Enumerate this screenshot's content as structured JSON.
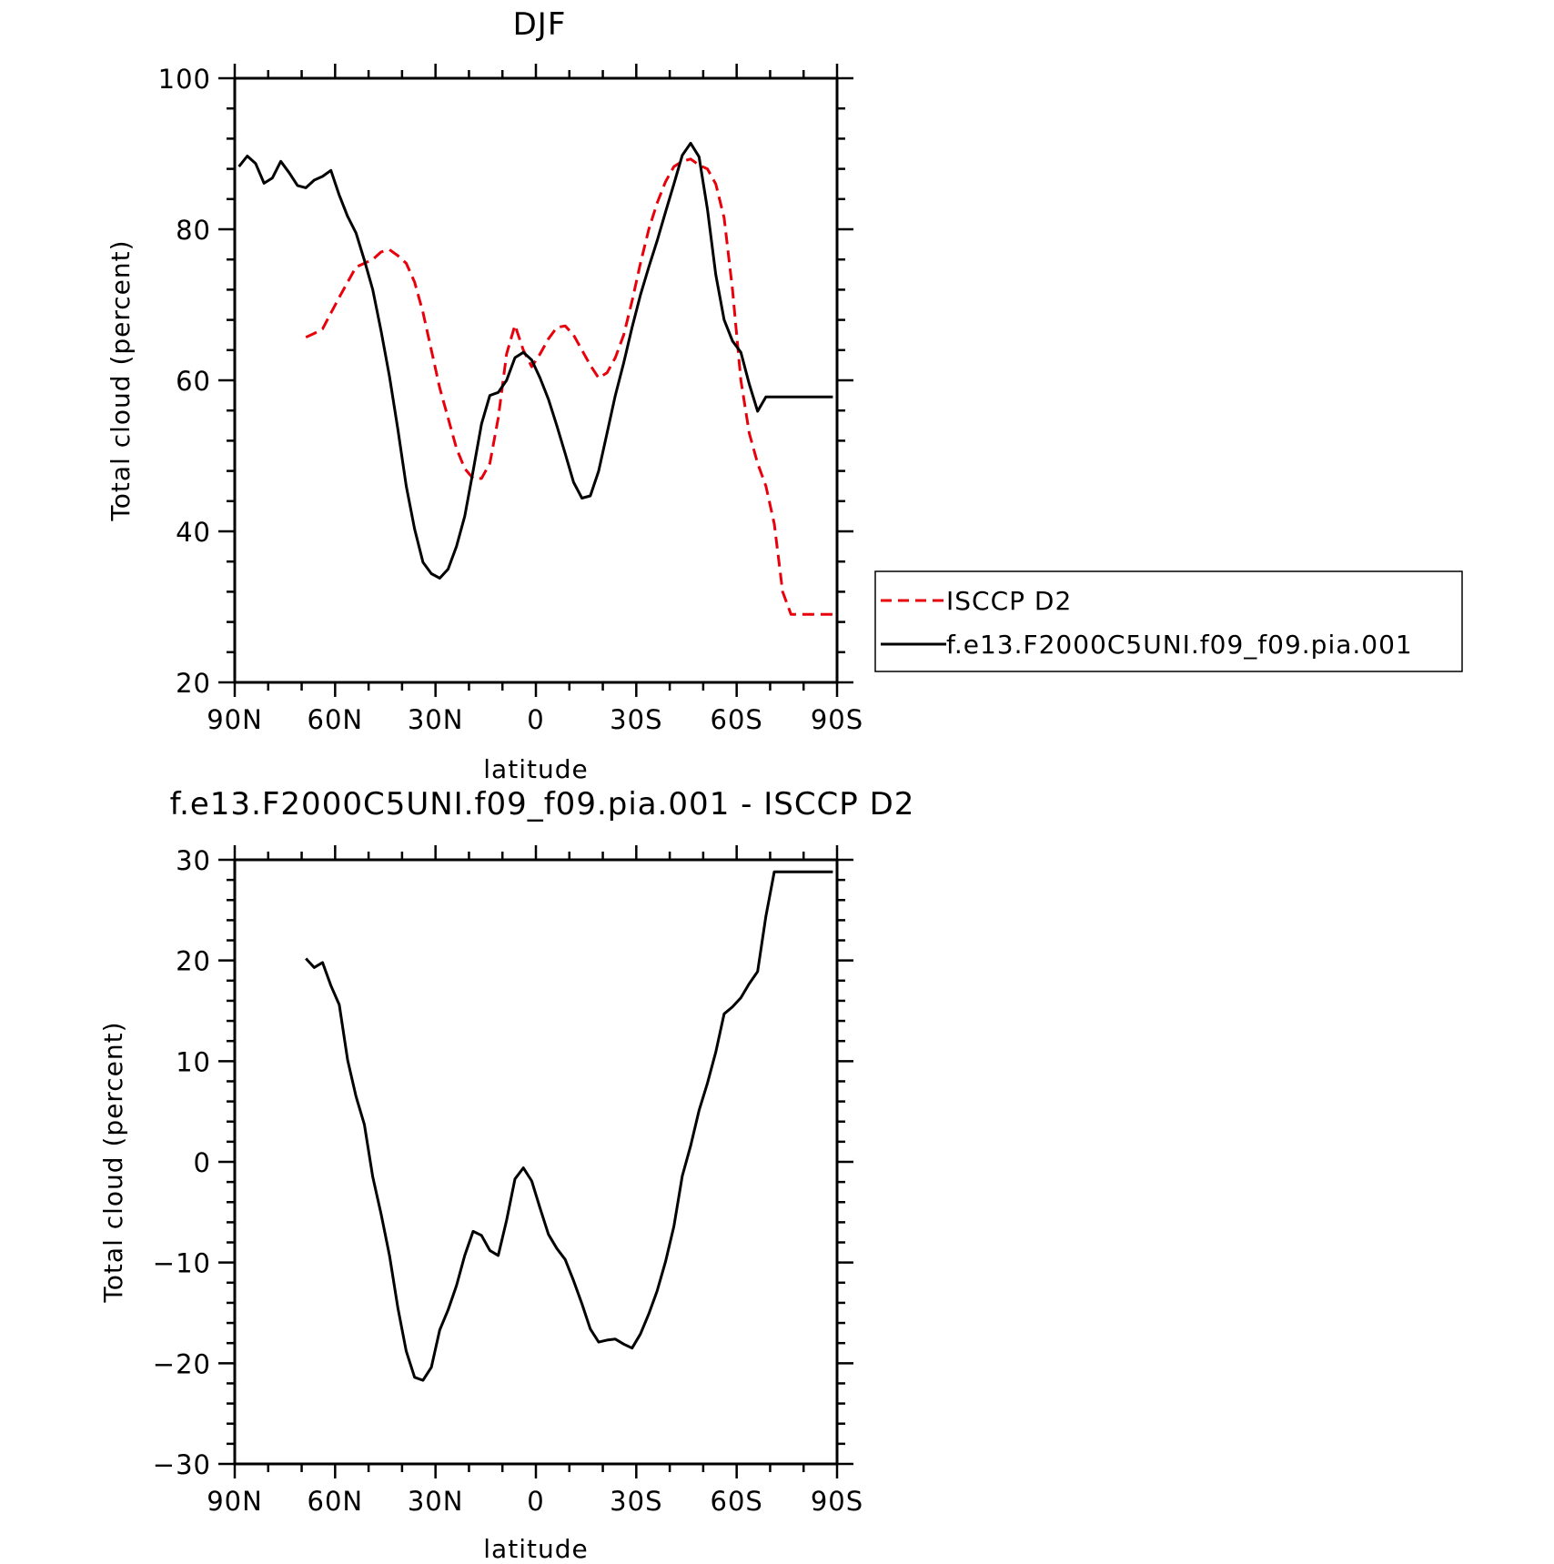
{
  "colors": {
    "obs": "#e8000b",
    "model": "#000000",
    "axis": "#000000"
  },
  "chart_data": [
    {
      "type": "line",
      "title": "DJF",
      "xlabel": "latitude",
      "ylabel": "Total cloud (percent)",
      "xlim": [
        90,
        -90
      ],
      "ylim": [
        20,
        100
      ],
      "xticks": [
        90,
        60,
        30,
        0,
        -30,
        -60,
        -90
      ],
      "xtick_labels": [
        "90N",
        "60N",
        "30N",
        "0",
        "30S",
        "60S",
        "90S"
      ],
      "yticks": [
        20,
        40,
        60,
        80,
        100
      ],
      "ytick_labels": [
        "20",
        "40",
        "60",
        "80",
        "100"
      ],
      "legend": "outside-right",
      "series": [
        {
          "name": "ISCCP D2",
          "style": "dashed",
          "color": "#e8000b",
          "x": [
            68.75,
            66.25,
            63.75,
            61.25,
            58.75,
            56.25,
            53.75,
            51.25,
            48.75,
            46.25,
            43.75,
            41.25,
            38.75,
            36.25,
            33.75,
            31.25,
            28.75,
            26.25,
            23.75,
            21.25,
            18.75,
            16.25,
            13.75,
            11.25,
            8.75,
            6.25,
            3.75,
            1.25,
            -1.25,
            -3.75,
            -6.25,
            -8.75,
            -11.25,
            -13.75,
            -16.25,
            -18.75,
            -21.25,
            -23.75,
            -26.25,
            -28.75,
            -31.25,
            -33.75,
            -36.25,
            -38.75,
            -41.25,
            -43.75,
            -46.25,
            -48.75,
            -51.25,
            -53.75,
            -56.25,
            -58.75,
            -61.25,
            -63.75,
            -66.25,
            -68.75,
            -71.25,
            -73.75,
            -76.25,
            -78.75,
            -81.25,
            -83.75,
            -86.25,
            -88.75
          ],
          "y": [
            65.7,
            66.2,
            66.8,
            68.9,
            71.0,
            73.0,
            75.0,
            75.5,
            76.0,
            77.0,
            77.3,
            76.5,
            75.5,
            73.0,
            69.0,
            64.0,
            59.0,
            55.0,
            51.0,
            48.3,
            47.0,
            47.0,
            49.0,
            55.0,
            63.5,
            67.3,
            64.0,
            61.8,
            63.5,
            65.5,
            67.0,
            67.2,
            66.0,
            64.0,
            62.0,
            60.3,
            61.0,
            63.0,
            66.0,
            70.5,
            75.5,
            80.0,
            83.5,
            86.3,
            88.3,
            89.0,
            89.3,
            88.5,
            88.0,
            86.0,
            81.5,
            72.0,
            60.0,
            53.0,
            49.0,
            46.0,
            41.0,
            32.0,
            29.0,
            29.0,
            29.0,
            29.0,
            29.0,
            29.0
          ]
        },
        {
          "name": "f.e13.F2000C5UNI.f09_f09.pia.001",
          "style": "solid",
          "color": "#000000",
          "x": [
            88.75,
            86.25,
            83.75,
            81.25,
            78.75,
            76.25,
            73.75,
            71.25,
            68.75,
            66.25,
            63.75,
            61.25,
            58.75,
            56.25,
            53.75,
            51.25,
            48.75,
            46.25,
            43.75,
            41.25,
            38.75,
            36.25,
            33.75,
            31.25,
            28.75,
            26.25,
            23.75,
            21.25,
            18.75,
            16.25,
            13.75,
            11.25,
            8.75,
            6.25,
            3.75,
            1.25,
            -1.25,
            -3.75,
            -6.25,
            -8.75,
            -11.25,
            -13.75,
            -16.25,
            -18.75,
            -21.25,
            -23.75,
            -26.25,
            -28.75,
            -31.25,
            -33.75,
            -36.25,
            -38.75,
            -41.25,
            -43.75,
            -46.25,
            -48.75,
            -51.25,
            -53.75,
            -56.25,
            -58.75,
            -61.25,
            -63.75,
            -66.25,
            -68.75,
            -71.25,
            -73.75,
            -76.25,
            -78.75,
            -81.25,
            -83.75,
            -86.25,
            -88.75
          ],
          "y": [
            88.3,
            89.7,
            88.7,
            86.1,
            86.8,
            89.0,
            87.5,
            85.8,
            85.5,
            86.5,
            87.0,
            87.8,
            84.5,
            81.7,
            79.5,
            75.9,
            72.0,
            66.5,
            60.5,
            53.5,
            46.0,
            40.3,
            35.9,
            34.4,
            33.8,
            35.0,
            38.0,
            42.0,
            48.0,
            54.2,
            58.0,
            58.4,
            60.0,
            63.0,
            63.7,
            62.7,
            60.3,
            57.5,
            54.0,
            50.3,
            46.5,
            44.4,
            44.7,
            48.0,
            53.0,
            58.0,
            62.3,
            67.0,
            71.3,
            75.0,
            78.5,
            82.3,
            86.0,
            89.8,
            91.4,
            89.6,
            82.7,
            74.0,
            68.0,
            65.2,
            63.7,
            59.5,
            55.9,
            57.8,
            57.8,
            57.8,
            57.8,
            57.8,
            57.8,
            57.8,
            57.8,
            57.8
          ]
        }
      ]
    },
    {
      "type": "line",
      "title": "f.e13.F2000C5UNI.f09_f09.pia.001 - ISCCP D2",
      "xlabel": "latitude",
      "ylabel": "Total cloud (percent)",
      "xlim": [
        90,
        -90
      ],
      "ylim": [
        -30,
        30
      ],
      "xticks": [
        90,
        60,
        30,
        0,
        -30,
        -60,
        -90
      ],
      "xtick_labels": [
        "90N",
        "60N",
        "30N",
        "0",
        "30S",
        "60S",
        "90S"
      ],
      "yticks": [
        -30,
        -20,
        -10,
        0,
        10,
        20,
        30
      ],
      "ytick_labels": [
        "−30",
        "−20",
        "−10",
        "0",
        "10",
        "20",
        "30"
      ],
      "series": [
        {
          "style": "solid",
          "color": "#000000",
          "x": [
            68.75,
            66.25,
            63.75,
            61.25,
            58.75,
            56.25,
            53.75,
            51.25,
            48.75,
            46.25,
            43.75,
            41.25,
            38.75,
            36.25,
            33.75,
            31.25,
            28.75,
            26.25,
            23.75,
            21.25,
            18.75,
            16.25,
            13.75,
            11.25,
            8.75,
            6.25,
            3.75,
            1.25,
            -1.25,
            -3.75,
            -6.25,
            -8.75,
            -11.25,
            -13.75,
            -16.25,
            -18.75,
            -21.25,
            -23.75,
            -26.25,
            -28.75,
            -31.25,
            -33.75,
            -36.25,
            -38.75,
            -41.25,
            -43.75,
            -46.25,
            -48.75,
            -51.25,
            -53.75,
            -56.25,
            -58.75,
            -61.25,
            -63.75,
            -66.25,
            -68.75,
            -71.25,
            -73.75,
            -76.25,
            -78.75,
            -81.25,
            -83.75,
            -86.25,
            -88.75
          ],
          "y": [
            20.2,
            19.3,
            19.8,
            17.5,
            15.6,
            10.1,
            6.5,
            3.7,
            -1.5,
            -5.2,
            -9.3,
            -14.5,
            -18.8,
            -21.4,
            -21.7,
            -20.4,
            -16.7,
            -14.7,
            -12.3,
            -9.3,
            -6.9,
            -7.3,
            -8.8,
            -9.3,
            -5.8,
            -1.7,
            -0.6,
            -1.9,
            -4.6,
            -7.2,
            -8.6,
            -9.7,
            -11.8,
            -14.1,
            -16.6,
            -17.9,
            -17.7,
            -17.6,
            -18.1,
            -18.5,
            -17.1,
            -15.1,
            -12.8,
            -9.9,
            -6.4,
            -1.4,
            1.6,
            5.1,
            7.8,
            10.9,
            14.7,
            15.4,
            16.3,
            17.7,
            18.9,
            24.4,
            28.8,
            28.8,
            28.8,
            28.8,
            28.8,
            28.8,
            28.8,
            28.8
          ]
        }
      ]
    }
  ]
}
